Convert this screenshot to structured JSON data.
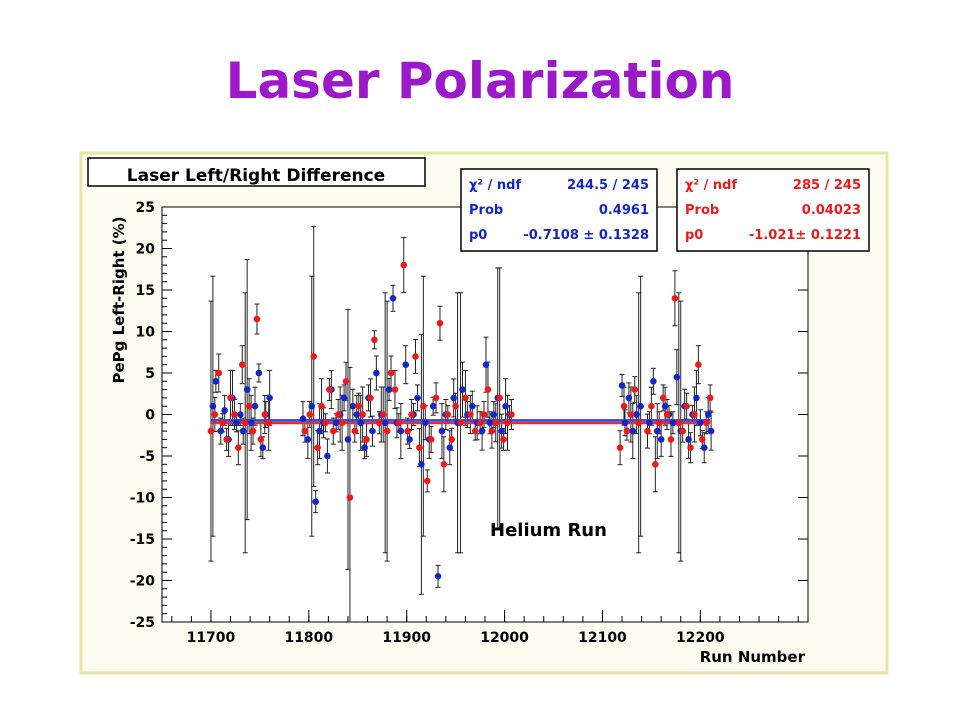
{
  "slide": {
    "title": "Laser Polarization"
  },
  "chart_data": {
    "type": "scatter",
    "title": "Laser Left/Right Difference",
    "xlabel": "Run Number",
    "ylabel": "PePg Left-Right (%)",
    "xlim": [
      11650,
      12310
    ],
    "ylim": [
      -25,
      25
    ],
    "xticks": [
      "11700",
      "11800",
      "11900",
      "12000",
      "12100",
      "12200"
    ],
    "yticks": [
      "-25",
      "-20",
      "-15",
      "-10",
      "-5",
      "0",
      "5",
      "10",
      "15",
      "20",
      "25"
    ],
    "annotation": "Helium Run",
    "colors": {
      "blue": "#1326c8",
      "red": "#f01818",
      "frame": "#e7e6a8",
      "fit_blue": "#3244e0",
      "fit_red": "#e23030"
    },
    "stat_boxes": [
      {
        "color": "#1326c8",
        "rows": [
          {
            "label": "χ² / ndf",
            "value": "244.5 / 245"
          },
          {
            "label": "Prob",
            "value": "0.4961"
          },
          {
            "label": "p0",
            "value": "-0.7108 ± 0.1328"
          }
        ]
      },
      {
        "color": "#f01818",
        "rows": [
          {
            "label": "χ² / ndf",
            "value": "285 / 245"
          },
          {
            "label": "Prob",
            "value": "0.04023"
          },
          {
            "label": "p0",
            "value": "-1.021± 0.1221"
          }
        ]
      }
    ],
    "series": [
      {
        "color": "blue",
        "fit": -0.7108,
        "x": [
          11702,
          11705,
          11710,
          11714,
          11718,
          11722,
          11726,
          11730,
          11733,
          11737,
          11741,
          11745,
          11749,
          11753,
          11756,
          11760,
          11794,
          11799,
          11803,
          11807,
          11811,
          11815,
          11819,
          11823,
          11828,
          11832,
          11836,
          11840,
          11845,
          11849,
          11853,
          11857,
          11861,
          11865,
          11869,
          11874,
          11878,
          11882,
          11886,
          11890,
          11894,
          11899,
          11903,
          11907,
          11911,
          11915,
          11919,
          11923,
          11927,
          11932,
          11936,
          11940,
          11944,
          11948,
          11952,
          11957,
          11962,
          11967,
          11972,
          11977,
          11981,
          11985,
          11989,
          11993,
          11997,
          12001,
          12005,
          12120,
          12123,
          12127,
          12131,
          12135,
          12139,
          12148,
          12152,
          12156,
          12160,
          12164,
          12168,
          12172,
          12176,
          12180,
          12184,
          12188,
          12192,
          12196,
          12200,
          12204,
          12208,
          12211
        ],
        "y": [
          1,
          4,
          -2,
          0.5,
          -3,
          2,
          -1,
          0,
          -2,
          3,
          -1,
          1,
          5,
          -4,
          0,
          2,
          -0.5,
          -3,
          1,
          -10.5,
          -2,
          -1,
          -5,
          3,
          -1,
          0,
          2,
          -3,
          1,
          0,
          -1,
          -4,
          2,
          -2,
          5,
          0,
          -1,
          3,
          14,
          -1,
          -2,
          6,
          -3,
          0,
          2,
          -6,
          -1,
          -3,
          1,
          -19.5,
          -2,
          0,
          -4,
          2,
          -1,
          3,
          0,
          1,
          -1,
          -2,
          6,
          -1,
          0,
          2,
          -2,
          1,
          0,
          3.5,
          -1,
          2,
          -2,
          0,
          1,
          -1,
          4,
          -2,
          -3,
          1,
          0,
          -1,
          4.5,
          -2,
          1,
          -3,
          0,
          2,
          -1,
          -4,
          0,
          -2
        ]
      },
      {
        "color": "red",
        "fit": -1.021,
        "x": [
          11700,
          11704,
          11708,
          11712,
          11716,
          11720,
          11724,
          11728,
          11732,
          11735,
          11739,
          11743,
          11747,
          11751,
          11755,
          11759,
          11796,
          11801,
          11805,
          11809,
          11813,
          11817,
          11821,
          11825,
          11830,
          11834,
          11838,
          11842,
          11847,
          11851,
          11855,
          11859,
          11863,
          11867,
          11872,
          11876,
          11880,
          11884,
          11888,
          11892,
          11897,
          11901,
          11905,
          11909,
          11913,
          11917,
          11921,
          11925,
          11930,
          11934,
          11938,
          11942,
          11946,
          11950,
          11955,
          11960,
          11965,
          11970,
          11975,
          11979,
          11983,
          11987,
          11991,
          11995,
          11999,
          12003,
          12007,
          12118,
          12122,
          12125,
          12129,
          12133,
          12137,
          12146,
          12150,
          12154,
          12158,
          12162,
          12166,
          12170,
          12174,
          12178,
          12182,
          12186,
          12190,
          12194,
          12198,
          12202,
          12206,
          12210
        ],
        "y": [
          -2,
          0,
          5,
          -1,
          -3,
          2,
          0,
          -4,
          6,
          -1,
          1,
          -2,
          11.5,
          -3,
          0,
          -1,
          -2,
          0,
          7,
          -4,
          1,
          -1,
          3,
          -2,
          0,
          -1,
          4,
          -10,
          -2,
          1,
          0,
          -3,
          2,
          9,
          -1,
          0,
          -2,
          5,
          3,
          -1,
          18,
          -2,
          0,
          7,
          -4,
          1,
          -8,
          -3,
          2,
          11,
          -6,
          0,
          -3,
          1,
          -1,
          2,
          0,
          -2,
          -1,
          0,
          3,
          -2,
          -1,
          2,
          -3,
          -1,
          0,
          -4,
          1,
          -2,
          0,
          3,
          -1,
          -2,
          1,
          -6,
          -1,
          2,
          0,
          -3,
          14,
          -1,
          -2,
          1,
          -4,
          0,
          6,
          -3,
          -1,
          2
        ]
      }
    ]
  }
}
